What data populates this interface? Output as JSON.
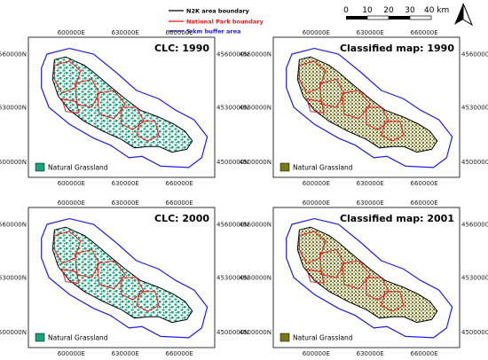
{
  "legend": {
    "n2k": "N2K area boundary",
    "national_park": "National Park boundary",
    "buffer": "5-km buffer area",
    "n2k_color": "#000000",
    "national_park_color": "#e41a1c",
    "buffer_color": "#1f1fdd"
  },
  "scalebar": {
    "labels": [
      "0",
      "10",
      "20",
      "30",
      "40 km"
    ]
  },
  "north_arrow": {
    "icon": "north-arrow-icon"
  },
  "axes": {
    "x_ticks": [
      "600000E",
      "630000E",
      "660000E"
    ],
    "y_ticks": [
      "4560000N",
      "4530000N",
      "4500000N"
    ]
  },
  "panels": [
    {
      "title": "CLC: 1990",
      "legend_label": "Natural Grassland",
      "fill_color": "#1aa37a"
    },
    {
      "title": "Classified map: 1990",
      "legend_label": "Natural Grassland",
      "fill_color": "#7a7a12"
    },
    {
      "title": "CLC: 2000",
      "legend_label": "Natural Grassland",
      "fill_color": "#1aa37a"
    },
    {
      "title": "Classified map: 2001",
      "legend_label": "Natural Grassland",
      "fill_color": "#7a7a12"
    }
  ]
}
